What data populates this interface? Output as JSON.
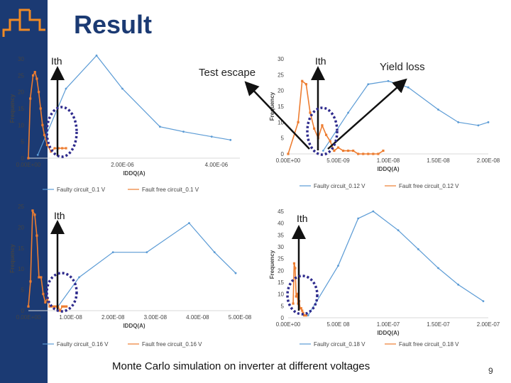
{
  "slide": {
    "title": "Result",
    "caption": "Monte Carlo simulation on inverter at different voltages",
    "page_number": "9",
    "annotations": {
      "test_escape": "Test escape",
      "yield_loss": "Yield loss",
      "ith": "Ith"
    }
  },
  "colors": {
    "faulty": "#5b9bd5",
    "fault_free": "#ed7d31",
    "sidebar": "#1b3a73",
    "ellipse": "#2e2a8c",
    "arrow": "#111111"
  },
  "chart_data": [
    {
      "type": "line",
      "xlabel": "IDDQ(A)",
      "ylabel": "Frequency",
      "xlim": [
        0,
        4.5e-06
      ],
      "ylim": [
        0,
        30
      ],
      "xticks": [
        0,
        2e-06,
        4e-06
      ],
      "xtick_labels": [
        "0.00E+00",
        "2.00E-06",
        "4.00E-06"
      ],
      "yticks": [
        0,
        5,
        10,
        15,
        20,
        25,
        30
      ],
      "ytick_labels": [
        "0",
        "5",
        "10",
        "15",
        "20",
        "25",
        "30"
      ],
      "series": [
        {
          "name": "Faulty circuit_0.1 V",
          "x": [
            2e-07,
            8e-07,
            1.45e-06,
            2e-06,
            2.8e-06,
            3.3e-06,
            3.9e-06,
            4.3e-06
          ],
          "y": [
            1,
            21,
            31,
            21,
            9.5,
            8,
            6.5,
            5.5
          ]
        },
        {
          "name": "Fault free circuit_0.1 V",
          "x": [
            0,
            4e-08,
            1e-07,
            1.4e-07,
            1.8e-07,
            2.2e-07,
            2.6e-07,
            3e-07,
            3.4e-07,
            4e-07,
            4.8e-07,
            5.6e-07,
            6.4e-07,
            7.2e-07,
            8e-07
          ],
          "y": [
            0,
            18,
            25,
            26,
            24,
            20,
            15,
            10,
            7,
            4,
            2,
            3,
            3,
            3,
            3
          ]
        }
      ]
    },
    {
      "type": "line",
      "xlabel": "IDDQ(A)",
      "ylabel": "Frequency",
      "xlim": [
        0,
        2e-08
      ],
      "ylim": [
        0,
        30
      ],
      "xticks": [
        0,
        5e-09,
        1e-08,
        1.5e-08,
        2e-08
      ],
      "xtick_labels": [
        "0.00E+00",
        "5.00E-09",
        "1.00E-08",
        "1.50E-08",
        "2.00E-08"
      ],
      "yticks": [
        0,
        5,
        10,
        15,
        20,
        25,
        30
      ],
      "ytick_labels": [
        "0",
        "5",
        "10",
        "15",
        "20",
        "25",
        "30"
      ],
      "series": [
        {
          "name": "Faulty circuit_0.12 V",
          "x": [
            3.5e-09,
            6e-09,
            8e-09,
            1e-08,
            1.2e-08,
            1.5e-08,
            1.7e-08,
            1.9e-08,
            2e-08
          ],
          "y": [
            1,
            13,
            22,
            23,
            21,
            14,
            10,
            9,
            10
          ]
        },
        {
          "name": "Fault free circuit_0.12 V",
          "x": [
            0,
            1e-09,
            1.4e-09,
            1.8e-09,
            2.2e-09,
            2.6e-09,
            3e-09,
            3.4e-09,
            3.8e-09,
            4.2e-09,
            4.6e-09,
            5e-09,
            5.5e-09,
            6e-09,
            6.5e-09,
            7e-09,
            7.5e-09,
            8e-09,
            8.5e-09,
            9e-09,
            9.5e-09
          ],
          "y": [
            0,
            10,
            23,
            22,
            13,
            8,
            5,
            9,
            6,
            4,
            1,
            2,
            1,
            1,
            1,
            0,
            0,
            0,
            0,
            0,
            1
          ]
        }
      ]
    },
    {
      "type": "line",
      "xlabel": "IDDQ(A)",
      "ylabel": "Frequency",
      "xlim": [
        0,
        5e-08
      ],
      "ylim": [
        0,
        25
      ],
      "xticks": [
        0,
        1e-08,
        2e-08,
        3e-08,
        4e-08,
        5e-08
      ],
      "xtick_labels": [
        "0.00E+00",
        "1.00E-08",
        "2.00E-08",
        "3.00E-08",
        "4.00E-08",
        "5.00E-08"
      ],
      "yticks": [
        0,
        5,
        10,
        15,
        20,
        25
      ],
      "ytick_labels": [
        "0",
        "5",
        "10",
        "15",
        "20",
        "25"
      ],
      "series": [
        {
          "name": "Faulty circuit_0.16 V",
          "x": [
            7e-09,
            1.2e-08,
            2e-08,
            2.8e-08,
            3.8e-08,
            4.4e-08,
            4.9e-08
          ],
          "y": [
            1,
            8,
            14,
            14,
            21,
            14,
            9
          ]
        },
        {
          "name": "Fault free circuit_0.16 V",
          "x": [
            0,
            5e-10,
            1e-09,
            1.5e-09,
            2e-09,
            2.5e-09,
            3e-09,
            3.5e-09,
            4e-09,
            4.5e-09,
            5e-09,
            5.5e-09,
            6e-09,
            6.5e-09,
            7e-09,
            7.5e-09,
            8e-09,
            8.5e-09,
            9e-09
          ],
          "y": [
            1,
            7,
            24,
            23,
            18,
            8,
            8,
            4,
            2,
            3,
            1,
            1,
            1,
            1,
            1,
            0,
            1,
            1,
            1
          ]
        }
      ]
    },
    {
      "type": "line",
      "xlabel": "IDDQ(A)",
      "ylabel": "Frequency",
      "xlim": [
        0,
        2e-07
      ],
      "ylim": [
        0,
        45
      ],
      "xticks": [
        0,
        5e-08,
        1e-07,
        1.5e-07,
        2e-07
      ],
      "xtick_labels": [
        "0.00E+00",
        "5.00E 08",
        "1.00E-07",
        "1.50E-07",
        "2.00E-07"
      ],
      "yticks": [
        0,
        5,
        10,
        15,
        20,
        25,
        30,
        35,
        40,
        45
      ],
      "ytick_labels": [
        "0",
        "5",
        "10",
        "15",
        "20",
        "25",
        "30",
        "35",
        "40",
        "45"
      ],
      "series": [
        {
          "name": "Faulty circuit_0.18 V",
          "x": [
            2e-08,
            5e-08,
            7e-08,
            8.5e-08,
            1.1e-07,
            1.3e-07,
            1.5e-07,
            1.7e-07,
            1.95e-07
          ],
          "y": [
            1,
            22,
            42,
            45,
            37,
            29,
            21,
            14,
            7
          ]
        },
        {
          "name": "Fault free circuit_0.18 V",
          "x": [
            5e-09,
            6e-09,
            7e-09,
            8e-09,
            9e-09,
            1e-08,
            1.1e-08,
            1.2e-08,
            1.3e-08,
            1.4e-08,
            1.5e-08,
            1.6e-08,
            1.8e-08
          ],
          "y": [
            6,
            23,
            21,
            9,
            10,
            6,
            7,
            4,
            4,
            3,
            2,
            1,
            1
          ]
        }
      ]
    }
  ]
}
